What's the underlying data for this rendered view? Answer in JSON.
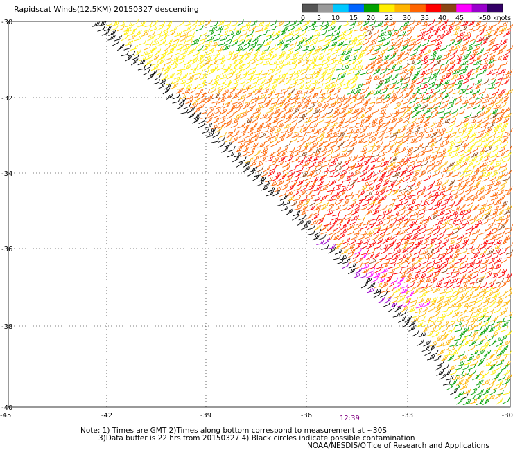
{
  "title": "Rapidscat Winds(12.5KM) 20150327 descending",
  "legend": {
    "colors": [
      "#555555",
      "#9a9a9a",
      "#00c8ff",
      "#0064ff",
      "#00a000",
      "#ffee00",
      "#ffb400",
      "#ff6400",
      "#ff0000",
      "#8b4513",
      "#ff00ff",
      "#9900cc",
      "#330066"
    ],
    "labels": [
      "0",
      "5",
      "10",
      "15",
      "20",
      "25",
      "30",
      "35",
      "40",
      "45",
      ">50 knots"
    ]
  },
  "map": {
    "lon_ticks": [
      "-45",
      "-42",
      "-39",
      "-36",
      "-33",
      "-30"
    ],
    "lat_ticks": [
      "-30",
      "-32",
      "-34",
      "-36",
      "-38",
      "-40"
    ]
  },
  "time_label": "12:39",
  "notes": {
    "line1": "Note: 1) Times are GMT 2)Times along bottom correspond to measurement at ~30S",
    "line2": "3)Data buffer is 22 hrs from 20150327 4) Black circles indicate possible contamination",
    "credit": "NOAA/NESDIS/Office of Research and Applications"
  }
}
